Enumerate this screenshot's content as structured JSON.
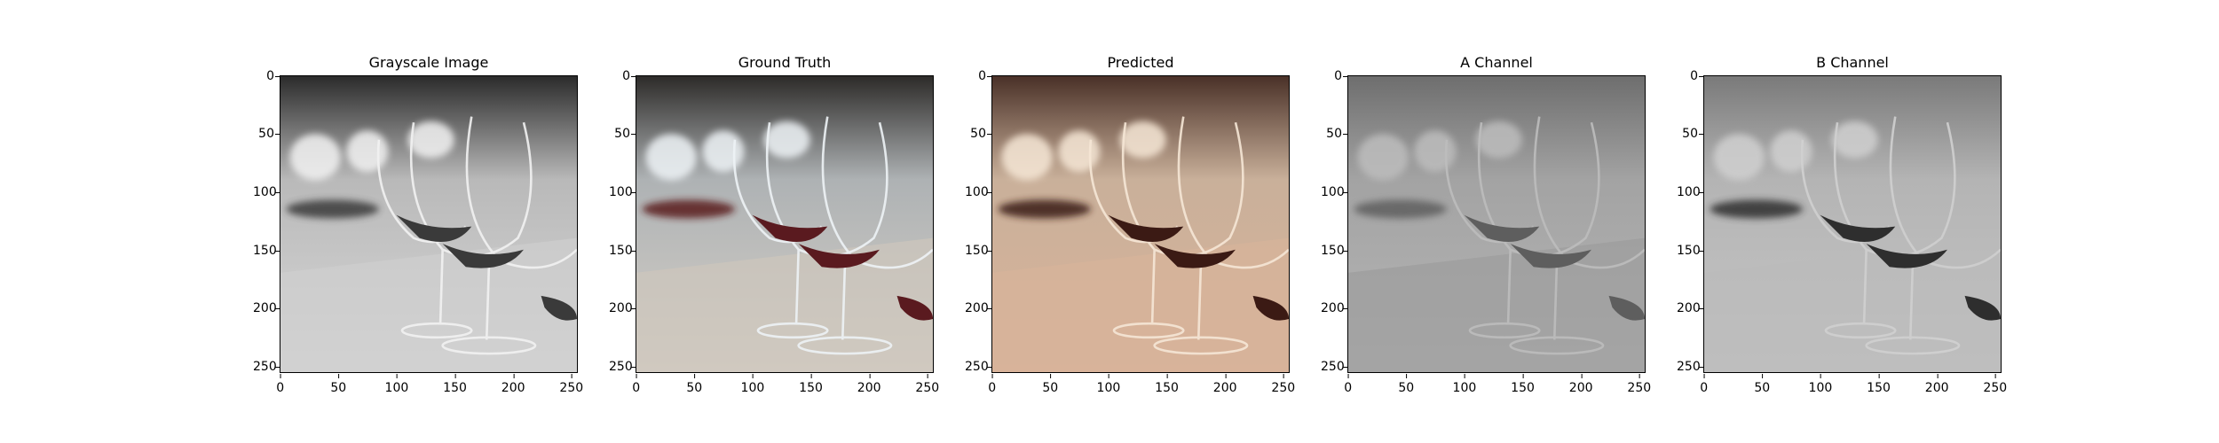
{
  "figure": {
    "panels": [
      {
        "title": "Grayscale Image",
        "image": "grayscale"
      },
      {
        "title": "Ground Truth",
        "image": "color-original"
      },
      {
        "title": "Predicted",
        "image": "color-predicted"
      },
      {
        "title": "A Channel",
        "image": "a-channel-map"
      },
      {
        "title": "B Channel",
        "image": "b-channel-map"
      }
    ],
    "y_ticks": [
      "0",
      "50",
      "100",
      "150",
      "200",
      "250"
    ],
    "x_ticks": [
      "0",
      "50",
      "100",
      "150",
      "200",
      "250"
    ],
    "axis_range": [
      0,
      256
    ],
    "colors": {
      "grayscale": "#8f8f8f",
      "wine": "#4a1c1c",
      "ground_truth_tint": "#b7a99f",
      "predicted_tint": "#c9a58a",
      "a_channel": "#a0a0a0",
      "b_channel": "#b5b5b5"
    }
  }
}
